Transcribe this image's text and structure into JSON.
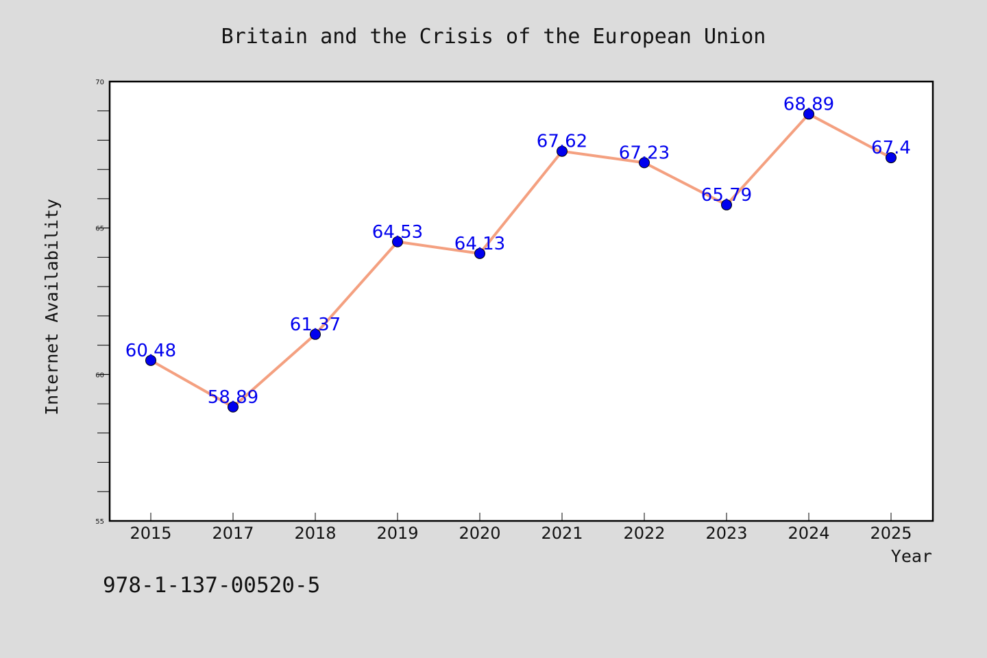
{
  "chart_data": {
    "type": "line",
    "title": "Britain and the Crisis of the European Union",
    "xlabel": "Year",
    "ylabel": "Internet Availability",
    "categories": [
      "2015",
      "2017",
      "2018",
      "2019",
      "2020",
      "2021",
      "2022",
      "2023",
      "2024",
      "2025"
    ],
    "values": [
      60.48,
      58.89,
      61.37,
      64.53,
      64.13,
      67.62,
      67.23,
      65.79,
      68.89,
      67.4
    ],
    "data_labels": [
      "60.48",
      "58.89",
      "61.37",
      "64.53",
      "64.13",
      "67.62",
      "67.23",
      "65.79",
      "68.89",
      "67.4"
    ],
    "ylim": [
      55,
      70
    ],
    "yticks": [
      55,
      60,
      65,
      70
    ],
    "grid": false,
    "line_color": "#f4a080",
    "marker_color": "#0000ee",
    "label_color": "#0000ee",
    "background_color": "#dcdcdc",
    "plot_background": "#ffffff"
  },
  "footer": {
    "isbn": "978-1-137-00520-5"
  }
}
